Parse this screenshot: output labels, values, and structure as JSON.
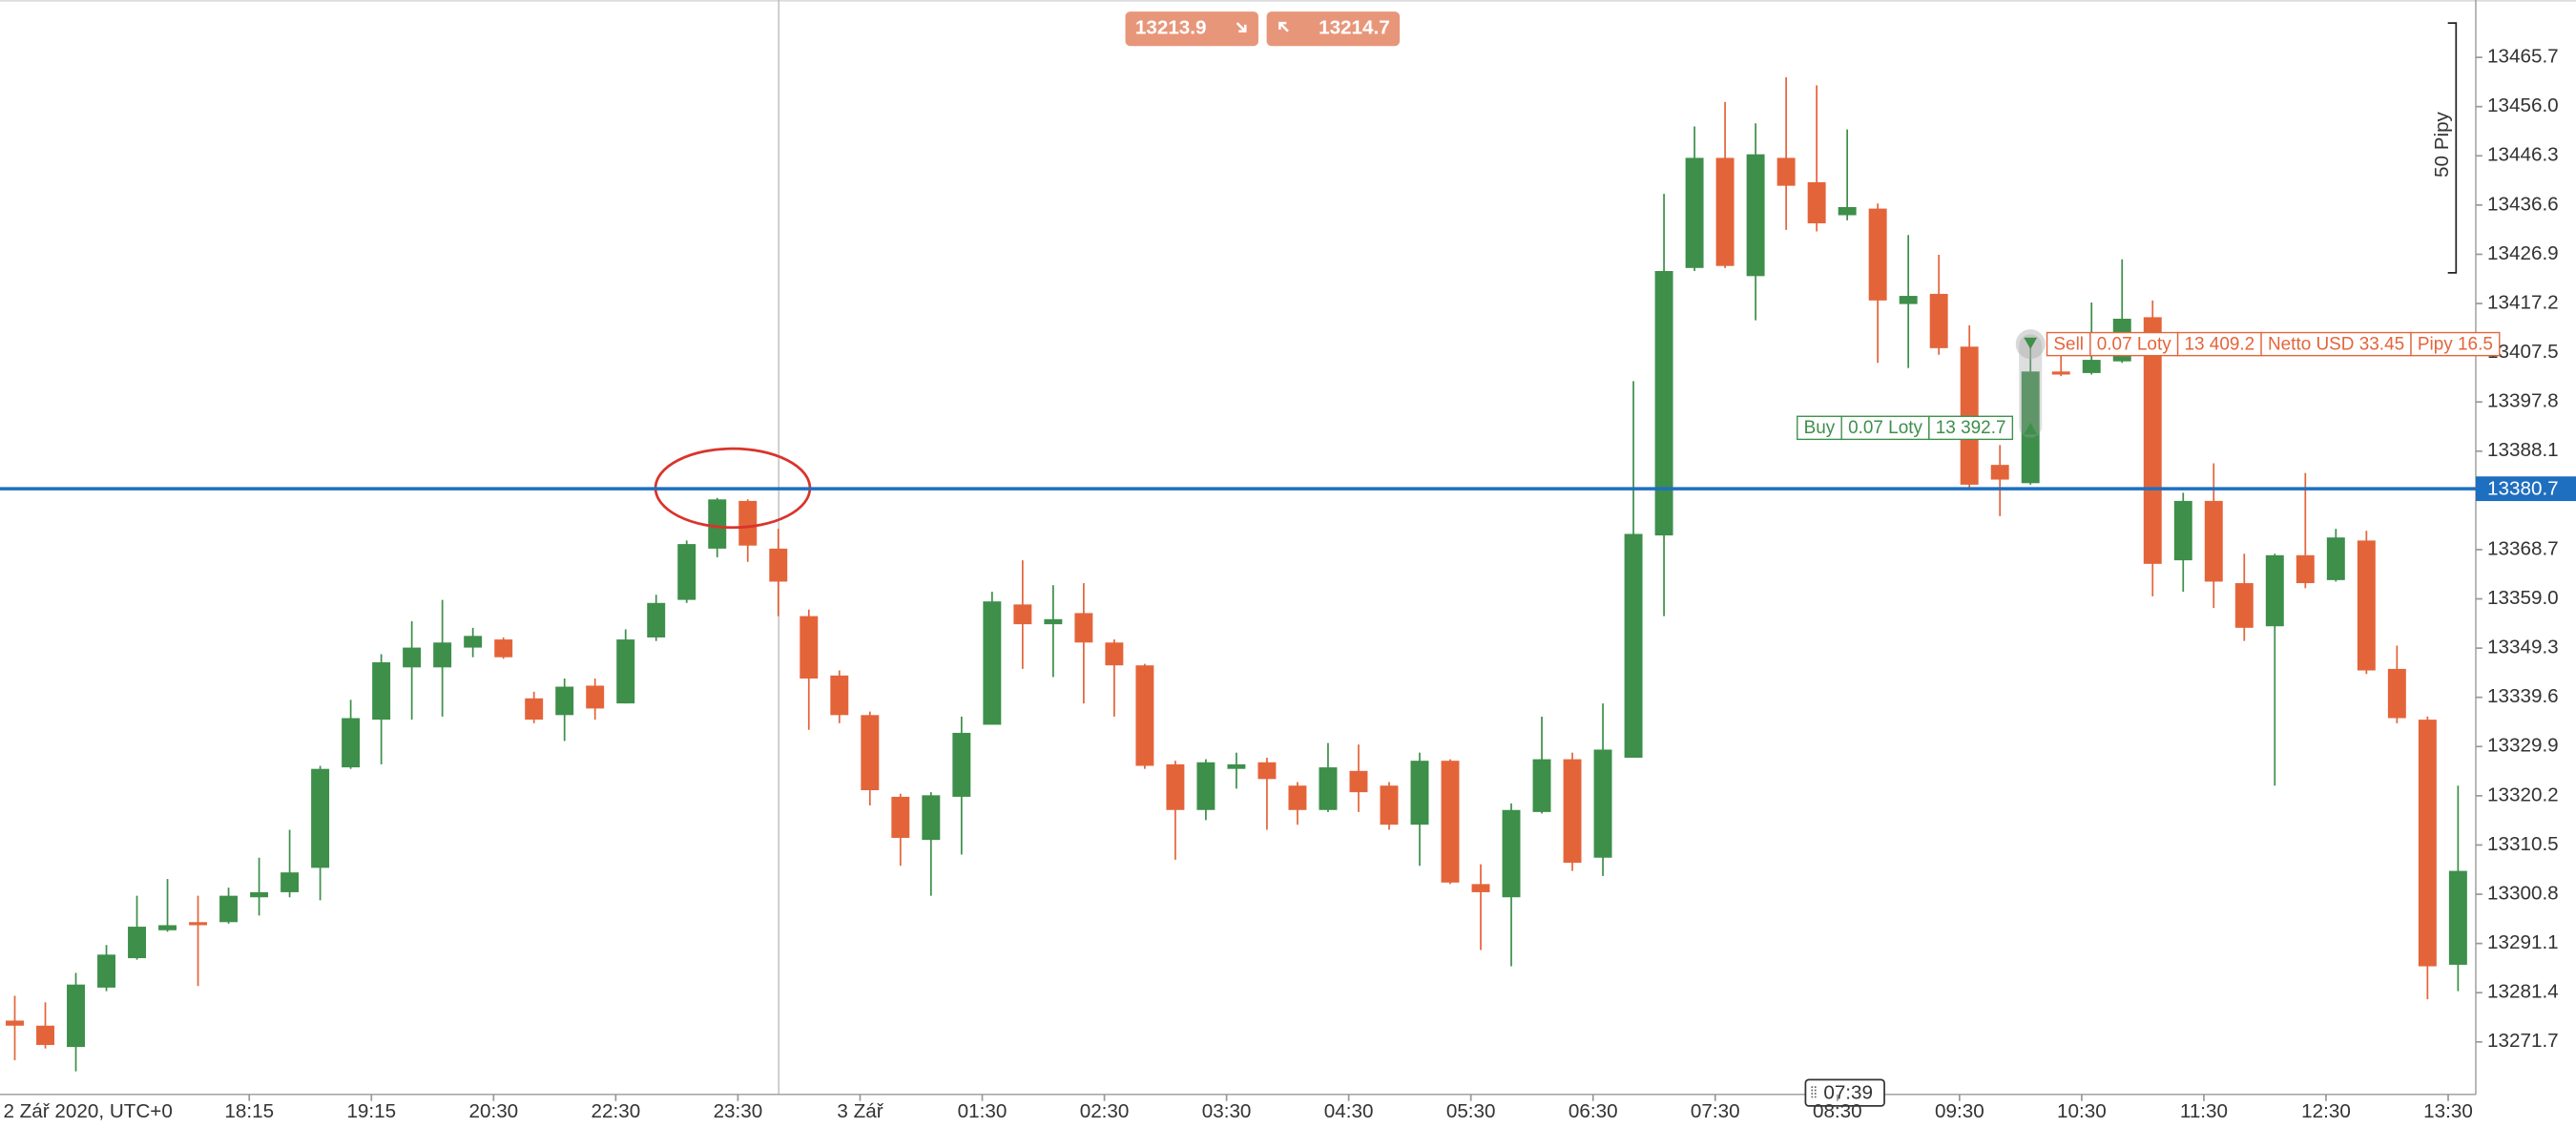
{
  "chart_data": {
    "type": "candlestick",
    "up_color": "#3d8f4a",
    "down_color": "#e4643a",
    "categories": [
      "2 Zář 2020, UTC+0",
      null,
      null,
      null,
      null,
      null,
      null,
      null,
      "18:15",
      null,
      null,
      null,
      "19:15",
      null,
      null,
      null,
      "20:30",
      null,
      null,
      null,
      "22:30",
      null,
      null,
      null,
      "23:30",
      null,
      null,
      null,
      "3 Zář",
      null,
      null,
      null,
      "01:30",
      null,
      null,
      null,
      "02:30",
      null,
      null,
      null,
      "03:30",
      null,
      null,
      null,
      "04:30",
      null,
      null,
      null,
      "05:30",
      null,
      null,
      null,
      "06:30",
      null,
      null,
      null,
      "07:30",
      null,
      null,
      null,
      "08:30",
      null,
      null,
      null,
      "09:30",
      null,
      null,
      null,
      "10:30",
      null,
      null,
      null,
      "11:30",
      null,
      null,
      null,
      "12:30",
      null,
      null,
      null,
      "13:30"
    ],
    "open": [
      13275.9,
      13274.9,
      13270.7,
      13282.4,
      13288.2,
      13293.7,
      13295.3,
      13295.3,
      13300.2,
      13301.2,
      13306.0,
      13325.8,
      13335.2,
      13345.5,
      13345.5,
      13349.4,
      13351.0,
      13339.4,
      13336.1,
      13341.9,
      13338.4,
      13351.4,
      13358.8,
      13368.9,
      13378.3,
      13368.9,
      13355.6,
      13343.9,
      13336.1,
      13320.0,
      13311.5,
      13320.0,
      13334.2,
      13357.9,
      13354.0,
      13356.2,
      13350.4,
      13345.9,
      13326.4,
      13317.4,
      13325.5,
      13326.8,
      13322.2,
      13317.4,
      13325.1,
      13322.2,
      13314.5,
      13327.1,
      13302.8,
      13300.2,
      13317.0,
      13327.4,
      13308.0,
      13327.7,
      13371.5,
      13424.2,
      13445.9,
      13422.6,
      13445.9,
      13441.1,
      13434.6,
      13435.9,
      13417.1,
      13419.1,
      13408.7,
      13385.4,
      13381.8,
      13403.8,
      13403.5,
      13405.8,
      13414.5,
      13366.6,
      13378.3,
      13362.1,
      13353.6,
      13367.6,
      13362.7,
      13370.5,
      13345.2,
      13335.2,
      13286.9
    ],
    "high": [
      13280.8,
      13279.5,
      13285.3,
      13290.8,
      13300.5,
      13303.8,
      13300.5,
      13302.1,
      13308.0,
      13313.5,
      13326.1,
      13339.1,
      13348.1,
      13354.6,
      13358.8,
      13353.3,
      13351.4,
      13340.7,
      13343.3,
      13343.3,
      13353.0,
      13359.8,
      13370.5,
      13378.9,
      13378.6,
      13372.8,
      13356.9,
      13344.9,
      13336.8,
      13320.6,
      13320.9,
      13335.8,
      13360.4,
      13366.6,
      13361.7,
      13362.1,
      13351.0,
      13346.2,
      13327.1,
      13327.4,
      13328.7,
      13327.7,
      13322.9,
      13330.6,
      13330.3,
      13322.9,
      13328.7,
      13327.4,
      13306.7,
      13318.7,
      13335.8,
      13328.7,
      13338.4,
      13401.9,
      13438.8,
      13452.1,
      13456.9,
      13452.7,
      13461.8,
      13460.2,
      13451.5,
      13436.9,
      13430.7,
      13426.8,
      13412.9,
      13389.3,
      13410.3,
      13407.7,
      13417.4,
      13425.9,
      13417.8,
      13379.9,
      13385.7,
      13367.9,
      13367.9,
      13383.8,
      13372.8,
      13372.4,
      13349.8,
      13335.8,
      13322.2
    ],
    "low": [
      13268.1,
      13270.4,
      13265.9,
      13281.7,
      13287.9,
      13293.4,
      13282.7,
      13295.0,
      13296.6,
      13300.2,
      13299.6,
      13325.5,
      13326.4,
      13335.2,
      13335.8,
      13347.5,
      13347.2,
      13334.5,
      13331.0,
      13335.2,
      13338.4,
      13350.7,
      13358.2,
      13367.2,
      13366.3,
      13355.6,
      13333.2,
      13334.5,
      13318.3,
      13306.4,
      13300.5,
      13308.6,
      13334.2,
      13345.2,
      13343.6,
      13338.4,
      13335.8,
      13325.5,
      13307.6,
      13315.4,
      13321.6,
      13313.5,
      13314.5,
      13317.0,
      13317.0,
      13313.5,
      13306.4,
      13302.8,
      13289.8,
      13286.6,
      13316.7,
      13305.4,
      13304.4,
      13327.7,
      13355.6,
      13423.6,
      13424.2,
      13413.9,
      13431.7,
      13431.4,
      13433.6,
      13405.5,
      13404.5,
      13407.1,
      13380.8,
      13375.3,
      13381.5,
      13402.9,
      13403.2,
      13405.5,
      13359.5,
      13360.4,
      13357.2,
      13350.7,
      13322.2,
      13361.1,
      13362.4,
      13344.2,
      13334.5,
      13280.1,
      13281.7
    ],
    "close": [
      13274.9,
      13271.1,
      13283.0,
      13288.9,
      13294.4,
      13294.7,
      13294.7,
      13300.5,
      13301.2,
      13305.1,
      13325.5,
      13335.5,
      13346.5,
      13349.4,
      13350.4,
      13351.7,
      13347.5,
      13335.2,
      13341.7,
      13337.4,
      13351.0,
      13358.2,
      13369.8,
      13378.6,
      13369.5,
      13362.4,
      13343.3,
      13336.1,
      13321.3,
      13311.9,
      13320.3,
      13332.6,
      13358.5,
      13354.0,
      13355.0,
      13350.4,
      13345.9,
      13326.1,
      13317.4,
      13326.8,
      13326.4,
      13323.5,
      13317.4,
      13325.8,
      13320.9,
      13314.5,
      13327.1,
      13303.1,
      13301.2,
      13317.4,
      13327.4,
      13307.0,
      13329.3,
      13371.8,
      13423.6,
      13445.9,
      13424.6,
      13446.6,
      13440.4,
      13433.0,
      13436.2,
      13417.8,
      13418.7,
      13408.4,
      13381.5,
      13382.5,
      13403.8,
      13403.2,
      13406.1,
      13414.2,
      13365.9,
      13378.3,
      13362.4,
      13353.3,
      13367.6,
      13362.1,
      13371.1,
      13344.9,
      13335.5,
      13286.6,
      13305.4
    ],
    "ylim": [
      13260.7,
      13477.0
    ],
    "yticks": [
      13271.7,
      13281.4,
      13291.1,
      13300.8,
      13310.5,
      13320.2,
      13329.9,
      13339.6,
      13349.3,
      {
        "value": 13359,
        "label": "13359.0"
      },
      13368.7,
      13388.1,
      13397.8,
      13407.5,
      13417.2,
      13426.9,
      13436.6,
      13446.3,
      {
        "value": 13456,
        "label": "13456.0"
      },
      13465.7
    ],
    "price_line": {
      "value": 13380.7,
      "color": "#1f6fc0"
    },
    "quote": {
      "bid": 13213.9,
      "ask": 13214.7
    },
    "pip_ruler": "50 Pipy",
    "crosshair_time": "07:39",
    "trades": [
      {
        "side": "Buy",
        "lots": "0.07 Loty",
        "price": {
          "value": 13392.7,
          "label": "13 392.7"
        },
        "color": "#3d8f4a"
      },
      {
        "side": "Sell",
        "lots": "0.07 Loty",
        "price": {
          "value": 13409.2,
          "label": "13 409.2"
        },
        "net": "Netto USD 33.45",
        "pips": "Pipy 16.5",
        "color": "#e4643a"
      }
    ]
  }
}
